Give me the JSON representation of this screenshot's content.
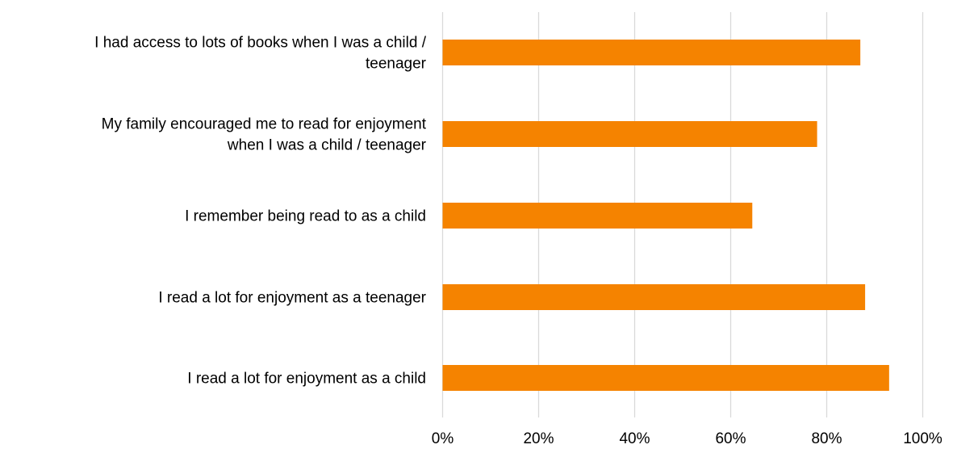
{
  "chart_data": {
    "type": "bar",
    "orientation": "horizontal",
    "categories": [
      "I had access to lots of books when I was a child / teenager",
      "My family encouraged me to read for enjoyment when I was a child / teenager",
      "I remember being read to as a child",
      "I read a lot for enjoyment as a teenager",
      "I read a lot for enjoyment as a child"
    ],
    "category_lines": [
      [
        "I had access to lots of books when I was a child /",
        "teenager"
      ],
      [
        "My family encouraged me to read for enjoyment",
        "when I was a child / teenager"
      ],
      [
        "I remember being read to as a child"
      ],
      [
        "I read a lot for enjoyment as a teenager"
      ],
      [
        "I read a lot for enjoyment as a child"
      ]
    ],
    "values": [
      87,
      78,
      64.5,
      88,
      93
    ],
    "xlim": [
      0,
      100
    ],
    "x_ticks": [
      0,
      20,
      40,
      60,
      80,
      100
    ],
    "x_tick_labels": [
      "0%",
      "20%",
      "40%",
      "60%",
      "80%",
      "100%"
    ],
    "grid": true,
    "legend": "none",
    "title": "",
    "xlabel": "",
    "ylabel": "",
    "colors": {
      "bar": "#F58300",
      "grid": "#D9D9D9",
      "text": "#000000"
    }
  }
}
